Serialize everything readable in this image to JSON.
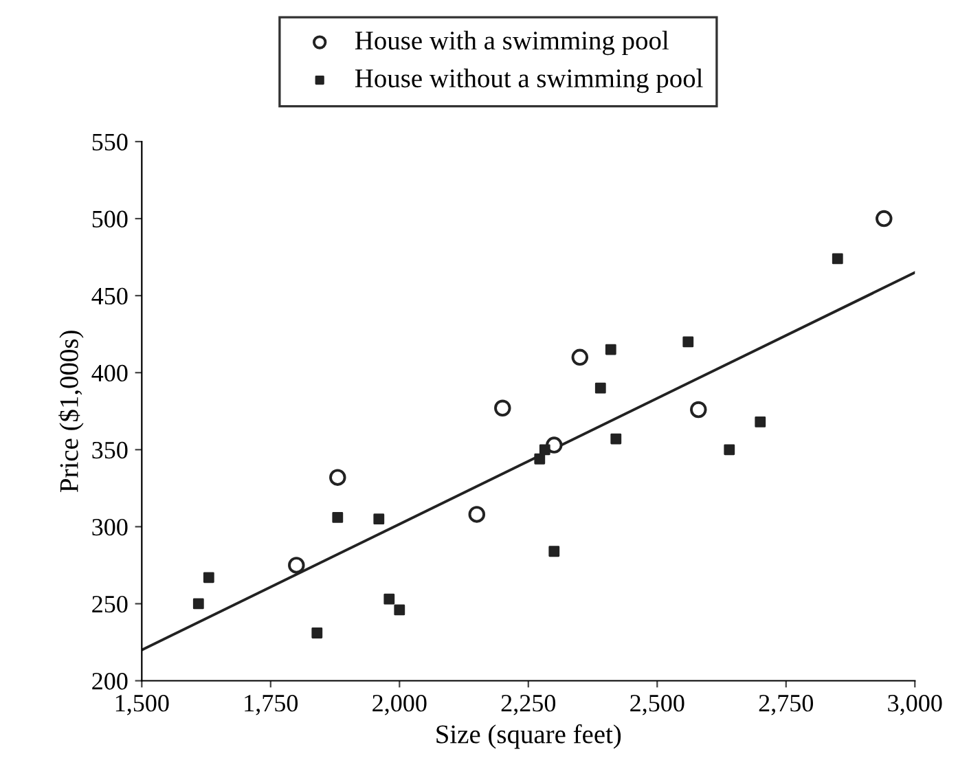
{
  "chart_data": {
    "type": "scatter",
    "xlabel": "Size (square feet)",
    "ylabel": "Price ($1,000s)",
    "xlim": [
      1500,
      3000
    ],
    "ylim": [
      200,
      550
    ],
    "xticks": [
      {
        "value": 1500,
        "label": "1,500"
      },
      {
        "value": 1750,
        "label": "1,750"
      },
      {
        "value": 2000,
        "label": "2,000"
      },
      {
        "value": 2250,
        "label": "2,250"
      },
      {
        "value": 2500,
        "label": "2,500"
      },
      {
        "value": 2750,
        "label": "2,750"
      },
      {
        "value": 3000,
        "label": "3,000"
      }
    ],
    "yticks": [
      200,
      250,
      300,
      350,
      400,
      450,
      500,
      550
    ],
    "grid": false,
    "legend": "top",
    "series": [
      {
        "name": "House with a swimming pool",
        "color": "#222222",
        "marker": "circle",
        "x": [
          1800,
          1880,
          2150,
          2200,
          2300,
          2350,
          2580,
          2940
        ],
        "values": [
          275,
          332,
          308,
          377,
          353,
          410,
          376,
          500
        ]
      },
      {
        "name": "House without a swimming pool",
        "color": "#222222",
        "marker": "square",
        "x": [
          1610,
          1630,
          1840,
          1880,
          1960,
          1980,
          2000,
          2272,
          2282,
          2300,
          2390,
          2410,
          2420,
          2560,
          2640,
          2700,
          2850
        ],
        "values": [
          250,
          267,
          231,
          306,
          305,
          253,
          246,
          344,
          350,
          284,
          390,
          415,
          357,
          420,
          350,
          368,
          474
        ]
      },
      {
        "type": "line",
        "color": "#222222",
        "marker": "none",
        "x": [
          1500,
          3000
        ],
        "values": [
          220,
          465
        ]
      }
    ]
  }
}
